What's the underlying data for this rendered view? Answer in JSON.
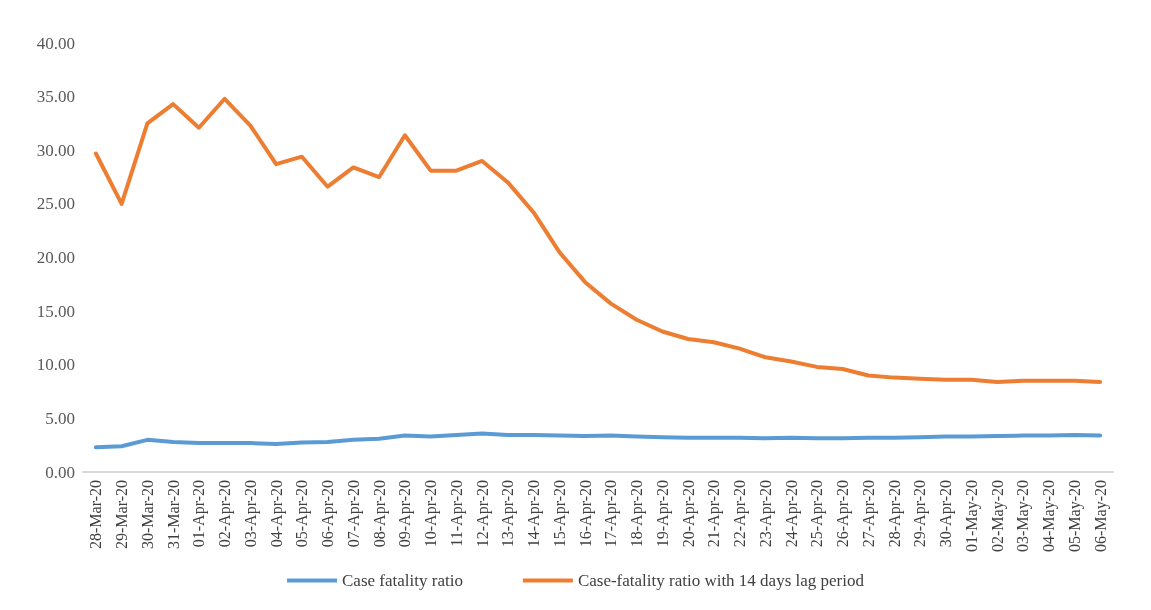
{
  "chart_data": {
    "type": "line",
    "categories": [
      "28-Mar-20",
      "29-Mar-20",
      "30-Mar-20",
      "31-Mar-20",
      "01-Apr-20",
      "02-Apr-20",
      "03-Apr-20",
      "04-Apr-20",
      "05-Apr-20",
      "06-Apr-20",
      "07-Apr-20",
      "08-Apr-20",
      "09-Apr-20",
      "10-Apr-20",
      "11-Apr-20",
      "12-Apr-20",
      "13-Apr-20",
      "14-Apr-20",
      "15-Apr-20",
      "16-Apr-20",
      "17-Apr-20",
      "18-Apr-20",
      "19-Apr-20",
      "20-Apr-20",
      "21-Apr-20",
      "22-Apr-20",
      "23-Apr-20",
      "24-Apr-20",
      "25-Apr-20",
      "26-Apr-20",
      "27-Apr-20",
      "28-Apr-20",
      "29-Apr-20",
      "30-Apr-20",
      "01-May-20",
      "02-May-20",
      "03-May-20",
      "04-May-20",
      "05-May-20",
      "06-May-20"
    ],
    "series": [
      {
        "name": "Case fatality ratio",
        "color": "#5b9bd5",
        "values": [
          2.3,
          2.4,
          3.0,
          2.8,
          2.7,
          2.7,
          2.7,
          2.6,
          2.75,
          2.8,
          3.0,
          3.1,
          3.4,
          3.3,
          3.45,
          3.6,
          3.45,
          3.45,
          3.4,
          3.35,
          3.4,
          3.3,
          3.25,
          3.2,
          3.2,
          3.2,
          3.15,
          3.2,
          3.15,
          3.15,
          3.2,
          3.2,
          3.25,
          3.3,
          3.3,
          3.35,
          3.4,
          3.4,
          3.45,
          3.4
        ]
      },
      {
        "name": "Case-fatality ratio with 14 days lag period",
        "color": "#ed7d31",
        "values": [
          29.7,
          25.0,
          32.5,
          34.3,
          32.1,
          34.8,
          32.3,
          28.7,
          29.4,
          26.6,
          28.4,
          27.5,
          31.4,
          28.1,
          28.1,
          29.0,
          27.0,
          24.2,
          20.5,
          17.7,
          15.7,
          14.2,
          13.1,
          12.4,
          12.1,
          11.5,
          10.7,
          10.3,
          9.8,
          9.6,
          9.0,
          8.8,
          8.7,
          8.6,
          8.6,
          8.4,
          8.5,
          8.5,
          8.5,
          8.4
        ]
      }
    ],
    "ylim": [
      0,
      40
    ],
    "yticks": [
      {
        "value": 0,
        "label": "0.00"
      },
      {
        "value": 5,
        "label": "5.00"
      },
      {
        "value": 10,
        "label": "10.00"
      },
      {
        "value": 15,
        "label": "15.00"
      },
      {
        "value": 20,
        "label": "20.00"
      },
      {
        "value": 25,
        "label": "25.00"
      },
      {
        "value": 30,
        "label": "30.00"
      },
      {
        "value": 35,
        "label": "35.00"
      },
      {
        "value": 40,
        "label": "40.00"
      }
    ],
    "legend": "bottom",
    "marker": "none",
    "line_style": "solid"
  }
}
